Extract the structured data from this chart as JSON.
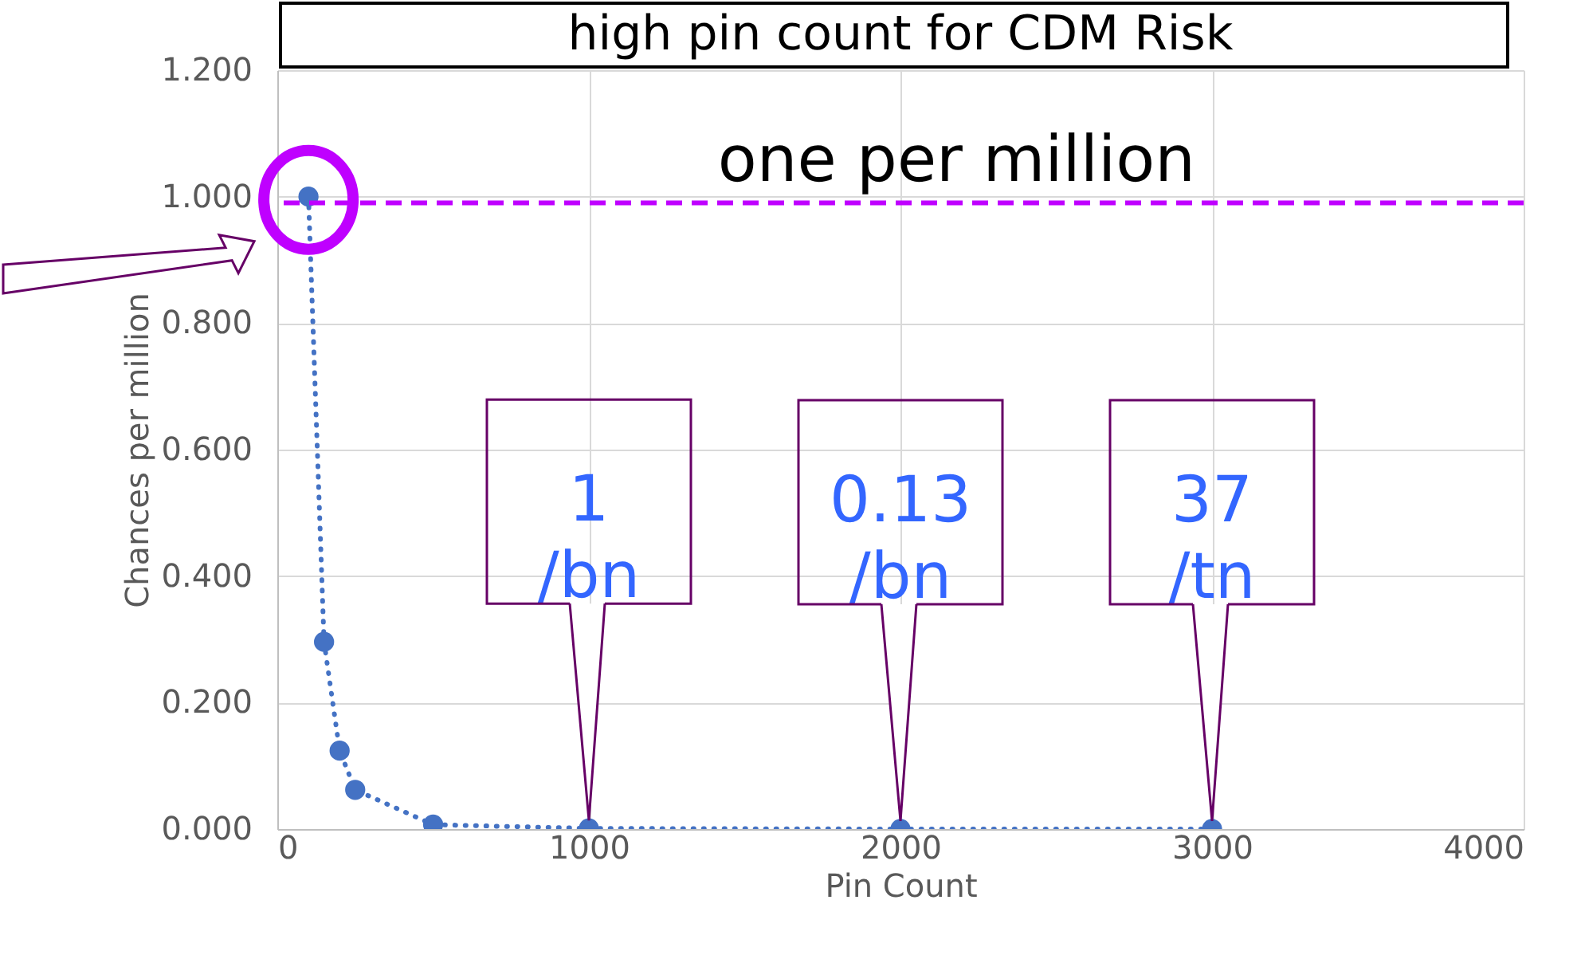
{
  "chart_data": {
    "type": "line",
    "title": "high pin count for CDM Risk",
    "xlabel": "Pin Count",
    "ylabel": "Chances per million",
    "x": [
      100,
      150,
      200,
      250,
      500,
      1000,
      2000,
      3000
    ],
    "series": [
      {
        "color": "#4472c4",
        "values": [
          1.0,
          0.296,
          0.124,
          0.062,
          0.007,
          0.001,
          0,
          0
        ]
      }
    ],
    "xlim": [
      0,
      4000
    ],
    "xticks": [
      0,
      1000,
      2000,
      3000,
      4000
    ],
    "ylim": [
      0,
      1.2
    ],
    "yticks": [
      {
        "value": 0,
        "label": "0.000"
      },
      {
        "value": 0.2,
        "label": "0.200"
      },
      {
        "value": 0.4,
        "label": "0.400"
      },
      {
        "value": 0.6,
        "label": "0.600"
      },
      {
        "value": 0.8,
        "label": "0.800"
      },
      {
        "value": 1.0,
        "label": "1.000"
      },
      {
        "value": 1.2,
        "label": "1.200"
      }
    ],
    "ref_lines": [
      {
        "axis": "y",
        "value": 0.99,
        "label": "one per million",
        "color": "#bf00ff",
        "line_style": "dashed"
      }
    ],
    "annotations": [
      {
        "text": "1 /bn",
        "x": 1000,
        "y": 0.001
      },
      {
        "text": "0.13 /bn",
        "x": 2000,
        "y": 0.00013
      },
      {
        "text": "37 /tn",
        "x": 3000,
        "y": 3.7e-05
      }
    ],
    "grid": true,
    "marker": "circle",
    "line_style": "dotted"
  }
}
